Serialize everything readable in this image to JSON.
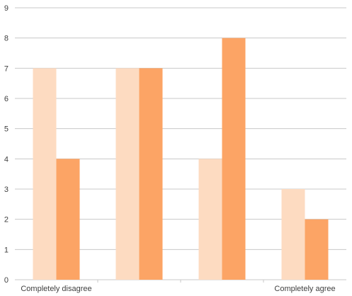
{
  "chart_data": {
    "type": "bar",
    "categories": [
      "Completely disagree",
      "",
      "",
      "Completely agree"
    ],
    "series": [
      {
        "values": [
          7,
          7,
          4,
          3
        ],
        "color": "#FDDBC1"
      },
      {
        "values": [
          4,
          7,
          8,
          2
        ],
        "color": "#FCA465"
      }
    ],
    "ylim": [
      0,
      9
    ],
    "yticks": [
      0,
      1,
      2,
      3,
      4,
      5,
      6,
      7,
      8,
      9
    ],
    "grid": true,
    "legend": "none",
    "title": "",
    "xlabel": "",
    "ylabel": ""
  }
}
